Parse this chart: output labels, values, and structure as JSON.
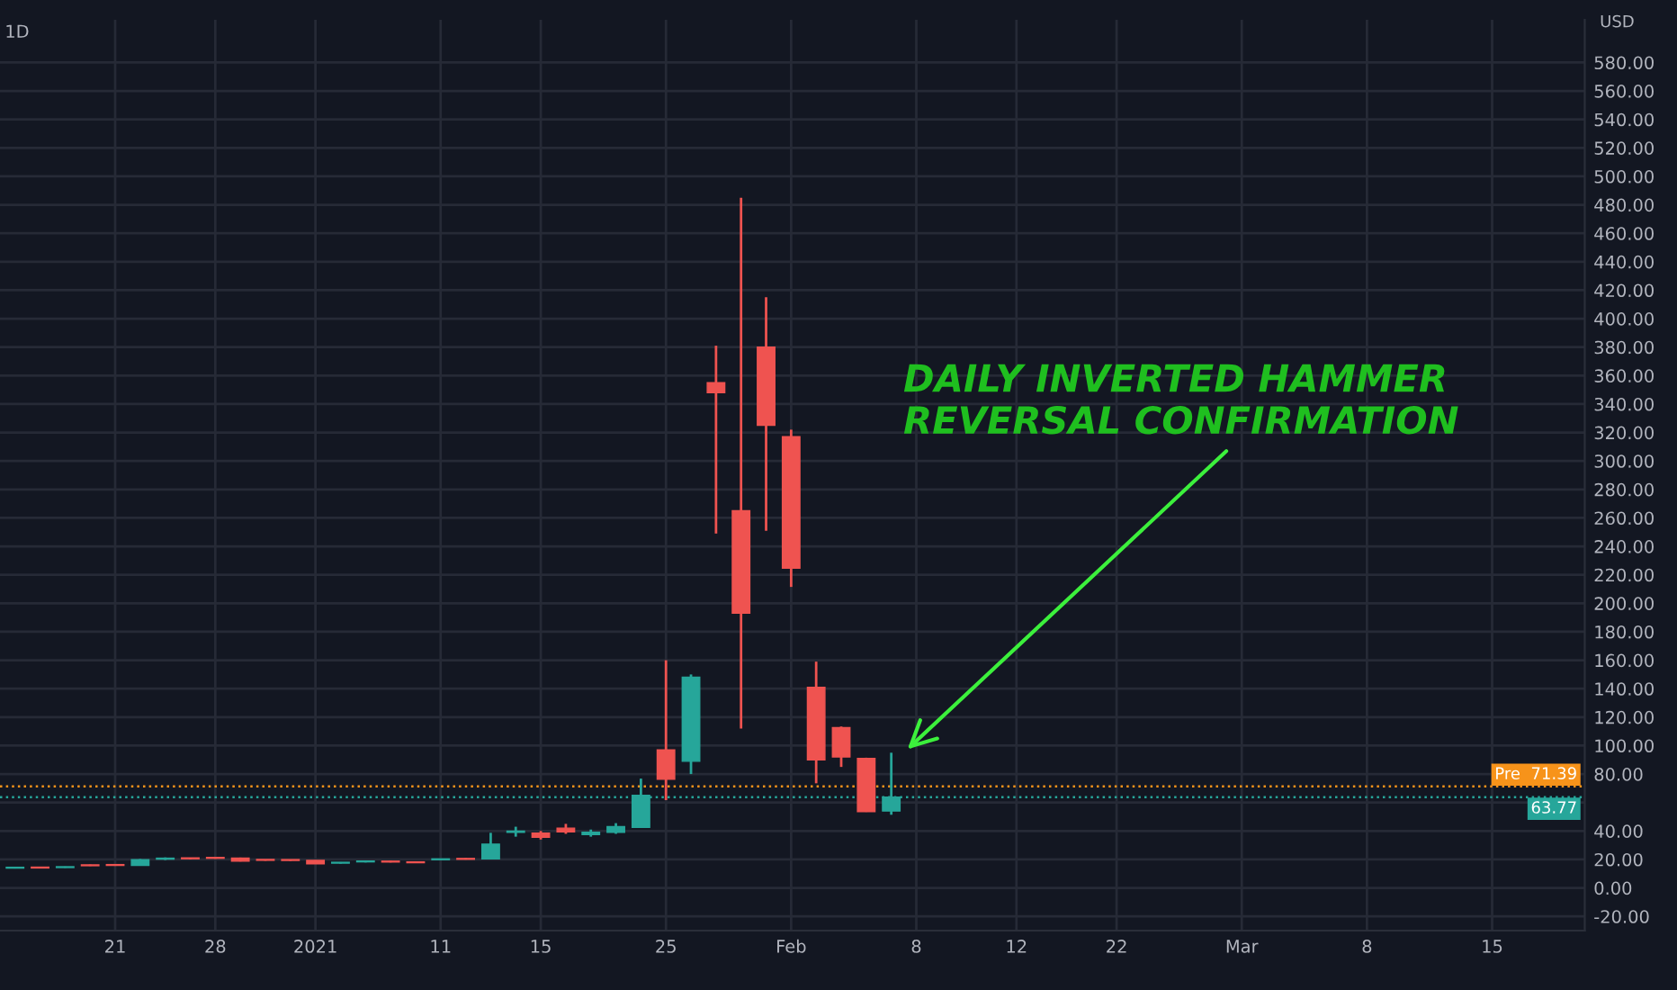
{
  "chart_data": {
    "type": "candlestick",
    "title": "1D",
    "ylabel": "USD",
    "categories": [
      null,
      null,
      null,
      null,
      "21",
      null,
      null,
      null,
      "28",
      null,
      null,
      null,
      "2021",
      null,
      null,
      null,
      null,
      "11",
      null,
      null,
      null,
      "15",
      null,
      null,
      null,
      null,
      "25",
      null,
      null,
      null,
      null,
      "Feb",
      null,
      null,
      null,
      null,
      "8",
      null,
      null,
      null,
      "12",
      null,
      null,
      null,
      "22",
      null,
      null,
      null,
      null,
      "Mar",
      null,
      null,
      null,
      null,
      "8",
      null,
      null,
      null,
      null,
      "15",
      null,
      null,
      null
    ],
    "ohlc": [
      [
        13.9,
        14.6,
        13.6,
        14.3
      ],
      [
        14.4,
        14.6,
        13.8,
        14.0
      ],
      [
        14.3,
        15.0,
        14.1,
        14.8
      ],
      [
        16.0,
        16.4,
        15.4,
        15.6
      ],
      [
        16.0,
        16.3,
        15.5,
        15.8
      ],
      [
        15.8,
        20.3,
        15.6,
        19.8
      ],
      [
        20.2,
        21.4,
        19.6,
        20.9
      ],
      [
        20.8,
        21.0,
        20.1,
        20.5
      ],
      [
        21.0,
        21.4,
        20.4,
        20.8
      ],
      [
        20.9,
        21.3,
        18.6,
        18.8
      ],
      [
        19.6,
        19.9,
        19.1,
        19.4
      ],
      [
        19.5,
        19.9,
        19.0,
        19.3
      ],
      [
        19.3,
        19.5,
        16.8,
        17.0
      ],
      [
        17.4,
        18.1,
        17.1,
        17.8
      ],
      [
        18.3,
        18.9,
        17.9,
        18.6
      ],
      [
        18.8,
        19.0,
        17.9,
        18.2
      ],
      [
        18.1,
        18.3,
        17.5,
        17.7
      ],
      [
        19.8,
        20.6,
        19.4,
        20.2
      ],
      [
        20.5,
        21.0,
        19.9,
        20.1
      ],
      [
        20.4,
        38.7,
        20.0,
        30.8
      ],
      [
        39.0,
        43.0,
        36.0,
        39.9
      ],
      [
        38.5,
        40.0,
        34.0,
        35.5
      ],
      [
        42.0,
        45.0,
        38.0,
        39.4
      ],
      [
        37.4,
        41.0,
        36.0,
        39.1
      ],
      [
        39.1,
        45.5,
        38.0,
        43.0
      ],
      [
        42.6,
        76.8,
        42.3,
        65.0
      ],
      [
        97.0,
        160.0,
        61.7,
        76.3
      ],
      [
        89.0,
        150.0,
        80.0,
        148.0
      ],
      [
        355.0,
        381.0,
        249.0,
        348.0
      ],
      [
        265.0,
        485.0,
        112.0,
        193.0
      ],
      [
        380.0,
        415.0,
        251.0,
        325.0
      ],
      [
        317.0,
        322.0,
        211.5,
        224.6
      ],
      [
        141.0,
        159.0,
        73.5,
        90.0
      ],
      [
        112.7,
        113.4,
        85.0,
        92.0
      ],
      [
        91.0,
        91.5,
        53.4,
        53.6
      ],
      [
        54.0,
        95.0,
        51.4,
        63.77
      ],
      null,
      null,
      null,
      null,
      null,
      null,
      null,
      null,
      null,
      null,
      null,
      null,
      null,
      null,
      null,
      null,
      null,
      null,
      null,
      null,
      null,
      null,
      null,
      null,
      null,
      null,
      null
    ],
    "ylim": [
      -30,
      610
    ],
    "yticks": [
      {
        "value": -20,
        "label": "-20.00"
      },
      {
        "value": 0,
        "label": "0.00"
      },
      {
        "value": 20,
        "label": "20.00"
      },
      {
        "value": 40,
        "label": "40.00"
      },
      {
        "value": 60,
        "label": null
      },
      {
        "value": 80,
        "label": "80.00"
      },
      {
        "value": 100,
        "label": "100.00"
      },
      {
        "value": 120,
        "label": "120.00"
      },
      {
        "value": 140,
        "label": "140.00"
      },
      {
        "value": 160,
        "label": "160.00"
      },
      {
        "value": 180,
        "label": "180.00"
      },
      {
        "value": 200,
        "label": "200.00"
      },
      {
        "value": 220,
        "label": "220.00"
      },
      {
        "value": 240,
        "label": "240.00"
      },
      {
        "value": 260,
        "label": "260.00"
      },
      {
        "value": 280,
        "label": "280.00"
      },
      {
        "value": 300,
        "label": "300.00"
      },
      {
        "value": 320,
        "label": "320.00"
      },
      {
        "value": 340,
        "label": "340.00"
      },
      {
        "value": 360,
        "label": "360.00"
      },
      {
        "value": 380,
        "label": "380.00"
      },
      {
        "value": 400,
        "label": "400.00"
      },
      {
        "value": 420,
        "label": "420.00"
      },
      {
        "value": 440,
        "label": "440.00"
      },
      {
        "value": 460,
        "label": "460.00"
      },
      {
        "value": 480,
        "label": "480.00"
      },
      {
        "value": 500,
        "label": "500.00"
      },
      {
        "value": 520,
        "label": "520.00"
      },
      {
        "value": 540,
        "label": "540.00"
      },
      {
        "value": 560,
        "label": "560.00"
      },
      {
        "value": 580,
        "label": "580.00"
      }
    ],
    "ref_lines": [
      {
        "axis": "y",
        "value": 71.39,
        "label": "Pre  71.39",
        "color": "#f7931a",
        "line_style": "dotted"
      },
      {
        "axis": "y",
        "value": 63.77,
        "label": "63.77",
        "color": "#26a69a",
        "line_style": "dotted"
      }
    ],
    "annotations": [
      "DAILY INVERTED HAMMER\nREVERSAL CONFIRMATION"
    ],
    "grid": true
  }
}
